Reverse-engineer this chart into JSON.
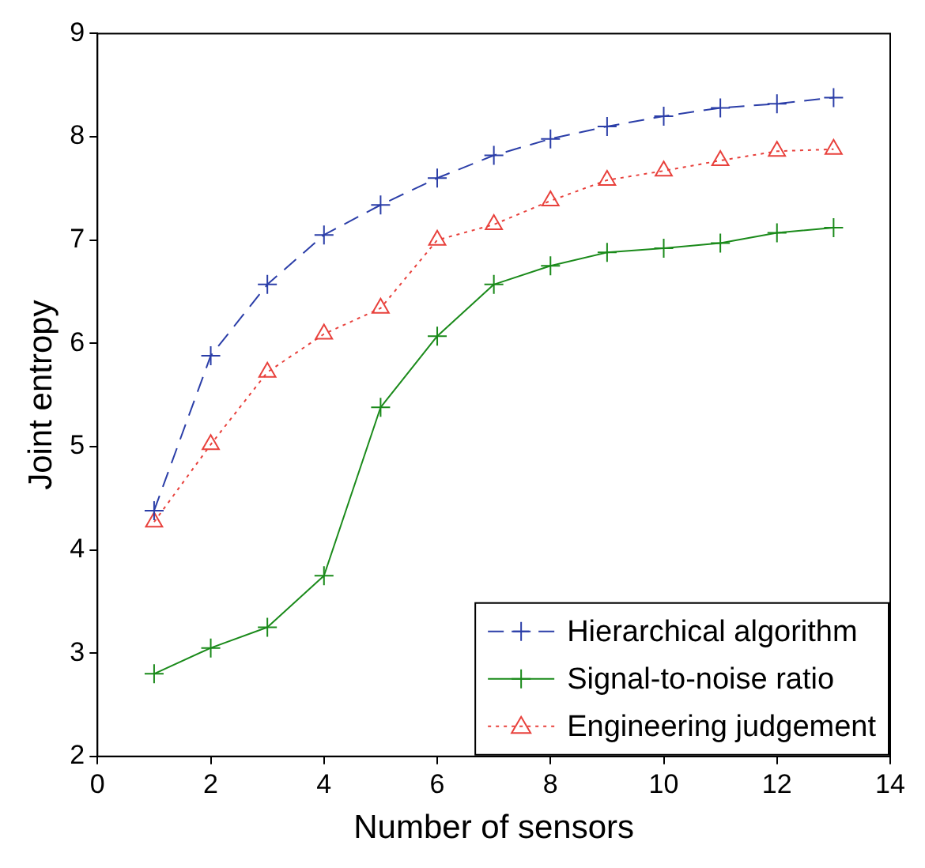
{
  "chart_data": {
    "type": "line",
    "xlabel": "Number of sensors",
    "ylabel": "Joint entropy",
    "x": [
      1,
      2,
      3,
      4,
      5,
      6,
      7,
      8,
      9,
      10,
      11,
      12,
      13
    ],
    "xlim": [
      0,
      14
    ],
    "xticks": [
      0,
      2,
      4,
      6,
      8,
      10,
      12,
      14
    ],
    "ylim": [
      2,
      9
    ],
    "yticks": [
      2,
      3,
      4,
      5,
      6,
      7,
      8,
      9
    ],
    "grid": false,
    "legend": "bottom right",
    "series": [
      {
        "name": "Hierarchical algorithm",
        "color": "#2b3ea8",
        "marker": "cross",
        "line_style": "dashed",
        "values": [
          4.38,
          5.88,
          6.57,
          7.05,
          7.34,
          7.6,
          7.82,
          7.98,
          8.1,
          8.2,
          8.28,
          8.32,
          8.38
        ]
      },
      {
        "name": "Signal-to-noise ratio",
        "color": "#1a8a1a",
        "marker": "cross",
        "line_style": "solid",
        "values": [
          2.8,
          3.05,
          3.25,
          3.75,
          5.38,
          6.07,
          6.57,
          6.75,
          6.88,
          6.92,
          6.97,
          7.07,
          7.12
        ]
      },
      {
        "name": "Engineering judgement",
        "color": "#e8413c",
        "marker": "triangle",
        "line_style": "dotted",
        "values": [
          4.27,
          5.02,
          5.72,
          6.09,
          6.34,
          7.0,
          7.15,
          7.38,
          7.58,
          7.67,
          7.77,
          7.86,
          7.88
        ]
      }
    ]
  }
}
